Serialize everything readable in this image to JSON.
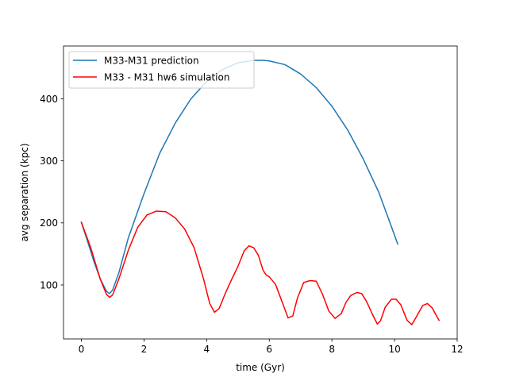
{
  "chart_data": {
    "type": "line",
    "title": "",
    "xlabel": "time (Gyr)",
    "ylabel": "avg separation (kpc)",
    "xlim": [
      -0.57,
      12.0
    ],
    "ylim": [
      13.0,
      485.0
    ],
    "xticks": [
      0,
      2,
      4,
      6,
      8,
      10,
      12
    ],
    "yticks": [
      100,
      200,
      300,
      400
    ],
    "xtick_labels": [
      "0",
      "2",
      "4",
      "6",
      "8",
      "10",
      "12"
    ],
    "ytick_labels": [
      "100",
      "200",
      "300",
      "400"
    ],
    "grid": false,
    "legend_position": "top-left",
    "series": [
      {
        "name": "M33-M31 prediction",
        "color": "#1f77b4",
        "x": [
          0.0,
          0.2,
          0.4,
          0.6,
          0.8,
          0.9,
          1.0,
          1.2,
          1.5,
          2.0,
          2.5,
          3.0,
          3.5,
          4.0,
          4.5,
          5.0,
          5.5,
          5.8,
          6.0,
          6.5,
          7.0,
          7.5,
          8.0,
          8.5,
          9.0,
          9.5,
          10.0,
          10.1
        ],
        "y": [
          201,
          170,
          138,
          110,
          90,
          86,
          92,
          120,
          176,
          247,
          312,
          361,
          400,
          428,
          447,
          458,
          462,
          462,
          461,
          455,
          440,
          418,
          388,
          350,
          303,
          249,
          180,
          166
        ]
      },
      {
        "name": "M33 - M31 hw6 simulation",
        "color": "#ff0000",
        "x": [
          0.0,
          0.3,
          0.6,
          0.8,
          0.9,
          1.0,
          1.2,
          1.5,
          1.8,
          2.1,
          2.4,
          2.7,
          3.0,
          3.3,
          3.6,
          3.9,
          4.1,
          4.25,
          4.4,
          4.6,
          4.8,
          5.0,
          5.2,
          5.35,
          5.5,
          5.65,
          5.8,
          5.9,
          6.0,
          6.2,
          6.4,
          6.6,
          6.75,
          6.9,
          7.1,
          7.3,
          7.5,
          7.7,
          7.9,
          8.1,
          8.3,
          8.45,
          8.6,
          8.8,
          8.95,
          9.1,
          9.3,
          9.45,
          9.55,
          9.7,
          9.9,
          10.05,
          10.2,
          10.4,
          10.55,
          10.7,
          10.9,
          11.05,
          11.2,
          11.42
        ],
        "y": [
          201,
          160,
          110,
          85,
          80,
          84,
          110,
          156,
          193,
          213,
          219,
          218,
          208,
          190,
          160,
          110,
          70,
          56,
          62,
          87,
          109,
          130,
          155,
          163,
          160,
          148,
          124,
          116,
          113,
          101,
          74,
          47,
          50,
          79,
          104,
          107,
          106,
          85,
          58,
          46,
          54,
          72,
          83,
          88,
          86,
          74,
          52,
          37,
          42,
          64,
          77,
          77,
          68,
          43,
          36,
          49,
          67,
          70,
          63,
          43
        ]
      }
    ]
  }
}
